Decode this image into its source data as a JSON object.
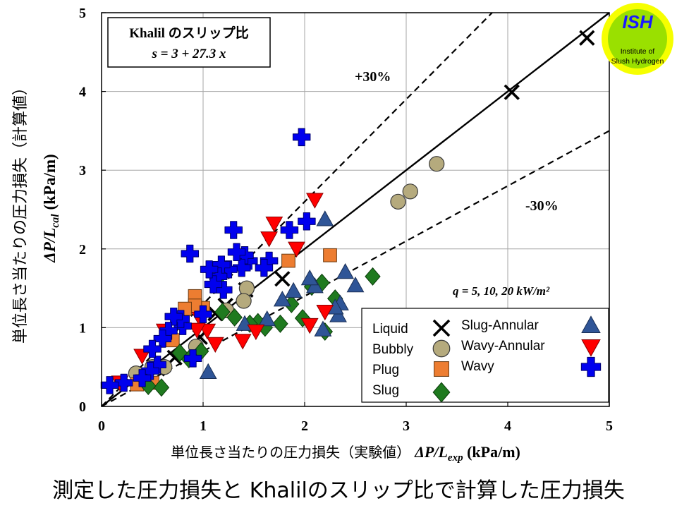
{
  "caption": "測定した圧力損失と Khalilのスリップ比で計算した圧力損失",
  "logo": {
    "text_top": "ISH",
    "text_line1": "Institute of",
    "text_line2": "Slush Hydrogen",
    "colors": {
      "outer": "#f6ff00",
      "inner": "#9ae000",
      "text_top": "#1a1aff"
    }
  },
  "model_box": {
    "line1": "Khalil のスリップ比",
    "line2": "s = 3 + 27.3 x"
  },
  "annotations": {
    "plus30": "+30%",
    "minus30": "-30%",
    "heat_flux": "q = 5, 10, 20 kW/m²"
  },
  "axes": {
    "xlabel_jp": "単位長さ当たりの圧力損失（実験値）",
    "xlabel_sym": "ΔP/L",
    "xlabel_sub": "exp",
    "xlabel_unit": " (kPa/m)",
    "ylabel_jp": "単位長さ当たりの圧力損失（計算値）",
    "ylabel_sym": "ΔP/L",
    "ylabel_sub": "cal",
    "ylabel_unit": " (kPa/m)",
    "x_ticks": [
      "0",
      "1",
      "2",
      "3",
      "4",
      "5"
    ],
    "y_ticks": [
      "0",
      "1",
      "2",
      "3",
      "4",
      "5"
    ]
  },
  "legend": {
    "items": [
      {
        "label": "Liquid",
        "marker": "x-cross",
        "color": "#000000"
      },
      {
        "label": "Bubbly",
        "marker": "circle",
        "color": "#b5aa7d"
      },
      {
        "label": "Plug",
        "marker": "square",
        "color": "#ed7d31"
      },
      {
        "label": "Slug",
        "marker": "diamond",
        "color": "#1f7a1f"
      },
      {
        "label": "Slug-Annular",
        "marker": "triangle-up",
        "color": "#2f5597"
      },
      {
        "label": "Wavy-Annular",
        "marker": "triangle-down",
        "color": "#ff0000"
      },
      {
        "label": "Wavy",
        "marker": "plus",
        "color": "#0000ee"
      }
    ]
  },
  "chart_data": {
    "type": "scatter",
    "xlim": [
      0,
      5
    ],
    "ylim": [
      0,
      5
    ],
    "grid": true,
    "legend_position": "bottom-right",
    "reference_lines": [
      {
        "label": "",
        "style": "solid",
        "slope": 1.0
      },
      {
        "label": "+30%",
        "style": "dashed",
        "slope": 1.3
      },
      {
        "label": "-30%",
        "style": "dashed",
        "slope": 0.7
      }
    ],
    "series": [
      {
        "name": "Liquid",
        "marker": "x-cross",
        "color": "#000000",
        "x": [
          4.78,
          4.04,
          1.78,
          1.42,
          1.22,
          1.12,
          0.97,
          0.72,
          0.55
        ],
        "y": [
          4.68,
          3.99,
          1.62,
          1.48,
          1.28,
          1.18,
          0.88,
          0.62,
          0.48
        ]
      },
      {
        "name": "Bubbly",
        "marker": "circle",
        "color": "#b5aa7d",
        "x": [
          3.3,
          3.04,
          2.92,
          1.43,
          1.4,
          1.23,
          0.93,
          0.62,
          0.5,
          0.34
        ],
        "y": [
          3.08,
          2.73,
          2.6,
          1.5,
          1.34,
          1.22,
          0.76,
          0.5,
          0.5,
          0.42
        ]
      },
      {
        "name": "Plug",
        "marker": "square",
        "color": "#ed7d31",
        "x": [
          2.25,
          1.84,
          1.0,
          0.92,
          0.92,
          0.82,
          0.7,
          0.5,
          0.4,
          0.35
        ],
        "y": [
          1.92,
          1.85,
          1.25,
          1.4,
          1.28,
          1.24,
          0.84,
          0.3,
          0.32,
          0.28
        ]
      },
      {
        "name": "Slug",
        "marker": "diamond",
        "color": "#1f7a1f",
        "x": [
          2.67,
          2.3,
          2.2,
          2.17,
          2.07,
          1.98,
          1.87,
          1.76,
          1.61,
          1.54,
          1.46,
          1.31,
          1.19,
          1.16,
          0.98,
          0.86,
          0.77,
          0.59,
          0.46
        ],
        "y": [
          1.65,
          1.37,
          0.95,
          1.57,
          1.52,
          1.12,
          1.3,
          1.05,
          1.0,
          1.07,
          1.05,
          1.13,
          1.2,
          1.55,
          0.7,
          0.6,
          0.68,
          0.24,
          0.26
        ]
      },
      {
        "name": "Slug-Annular",
        "marker": "triangle-up",
        "color": "#2f5597",
        "x": [
          2.5,
          2.4,
          2.35,
          2.33,
          2.3,
          2.2,
          2.18,
          2.1,
          2.05,
          1.89,
          1.78,
          1.63,
          1.41,
          1.05
        ],
        "y": [
          1.53,
          1.7,
          1.3,
          1.15,
          1.25,
          2.37,
          0.97,
          1.52,
          1.62,
          1.46,
          1.35,
          1.1,
          1.04,
          0.43
        ]
      },
      {
        "name": "Wavy-Annular",
        "marker": "triangle-down",
        "color": "#ff0000",
        "x": [
          2.1,
          2.2,
          2.05,
          1.92,
          1.7,
          1.65,
          1.52,
          1.39,
          1.12,
          1.04,
          0.97,
          0.94,
          0.62,
          0.4,
          0.18
        ],
        "y": [
          2.63,
          1.21,
          1.04,
          2.01,
          2.33,
          2.14,
          0.96,
          0.84,
          0.8,
          0.97,
          1.12,
          0.98,
          0.97,
          0.65,
          0.31
        ]
      },
      {
        "name": "Wavy",
        "marker": "plus",
        "color": "#0000ee",
        "x": [
          1.97,
          2.02,
          1.85,
          1.65,
          1.6,
          1.45,
          1.41,
          1.38,
          1.33,
          1.3,
          1.25,
          1.2,
          1.18,
          1.15,
          1.1,
          1.06,
          1.0,
          0.9,
          0.87,
          0.8,
          0.78,
          0.71,
          0.66,
          0.6,
          0.55,
          0.5,
          0.48,
          0.4,
          0.22,
          0.08
        ],
        "y": [
          3.42,
          2.35,
          2.24,
          1.85,
          1.76,
          1.85,
          1.92,
          1.76,
          1.96,
          2.24,
          1.74,
          1.48,
          1.8,
          1.65,
          1.55,
          1.74,
          1.17,
          0.61,
          1.94,
          1.02,
          1.11,
          1.14,
          0.96,
          0.86,
          0.53,
          0.73,
          0.45,
          0.36,
          0.3,
          0.27
        ]
      }
    ]
  }
}
